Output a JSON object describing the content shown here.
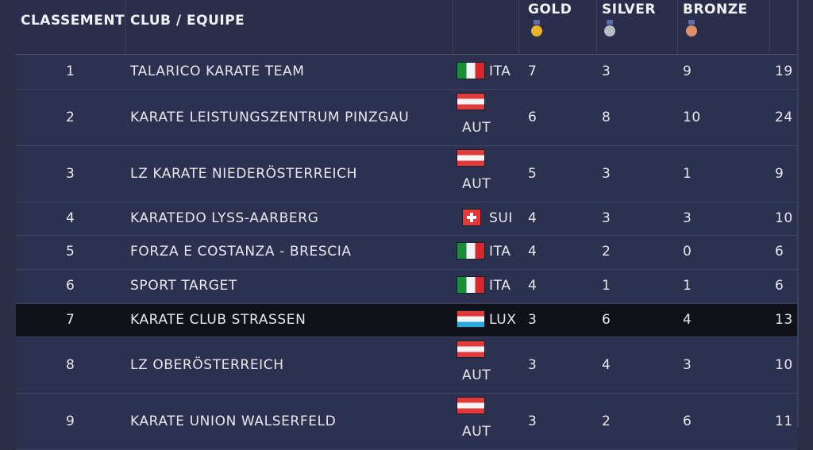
{
  "header": {
    "rank": "CLASSEMENT",
    "club": "CLUB / EQUIPE",
    "gold": "GOLD",
    "silver": "SILVER",
    "bronze": "BRONZE"
  },
  "colors": {
    "gold": "#e8b52a",
    "silver": "#b9bcc6",
    "bronze": "#e0906a"
  },
  "rows": [
    {
      "rank": "1",
      "club": "TALARICO KARATE TEAM",
      "country": "ITA",
      "flag": "ita",
      "gold": "7",
      "silver": "3",
      "bronze": "9",
      "total": "19"
    },
    {
      "rank": "2",
      "club": "KARATE LEISTUNGSZENTRUM PINZGAU",
      "country": "AUT",
      "flag": "aut",
      "gold": "6",
      "silver": "8",
      "bronze": "10",
      "total": "24"
    },
    {
      "rank": "3",
      "club": "LZ KARATE NIEDERÖSTERREICH",
      "country": "AUT",
      "flag": "aut",
      "gold": "5",
      "silver": "3",
      "bronze": "1",
      "total": "9"
    },
    {
      "rank": "4",
      "club": "KARATEDO LYSS-AARBERG",
      "country": "SUI",
      "flag": "sui",
      "gold": "4",
      "silver": "3",
      "bronze": "3",
      "total": "10"
    },
    {
      "rank": "5",
      "club": "FORZA E COSTANZA - BRESCIA",
      "country": "ITA",
      "flag": "ita",
      "gold": "4",
      "silver": "2",
      "bronze": "0",
      "total": "6"
    },
    {
      "rank": "6",
      "club": "SPORT TARGET",
      "country": "ITA",
      "flag": "ita",
      "gold": "4",
      "silver": "1",
      "bronze": "1",
      "total": "6"
    },
    {
      "rank": "7",
      "club": "KARATE CLUB STRASSEN",
      "country": "LUX",
      "flag": "lux",
      "gold": "3",
      "silver": "6",
      "bronze": "4",
      "total": "13"
    },
    {
      "rank": "8",
      "club": "LZ OBERÖSTERREICH",
      "country": "AUT",
      "flag": "aut",
      "gold": "3",
      "silver": "4",
      "bronze": "3",
      "total": "10"
    },
    {
      "rank": "9",
      "club": "KARATE UNION WALSERFELD",
      "country": "AUT",
      "flag": "aut",
      "gold": "3",
      "silver": "2",
      "bronze": "6",
      "total": "11"
    }
  ]
}
